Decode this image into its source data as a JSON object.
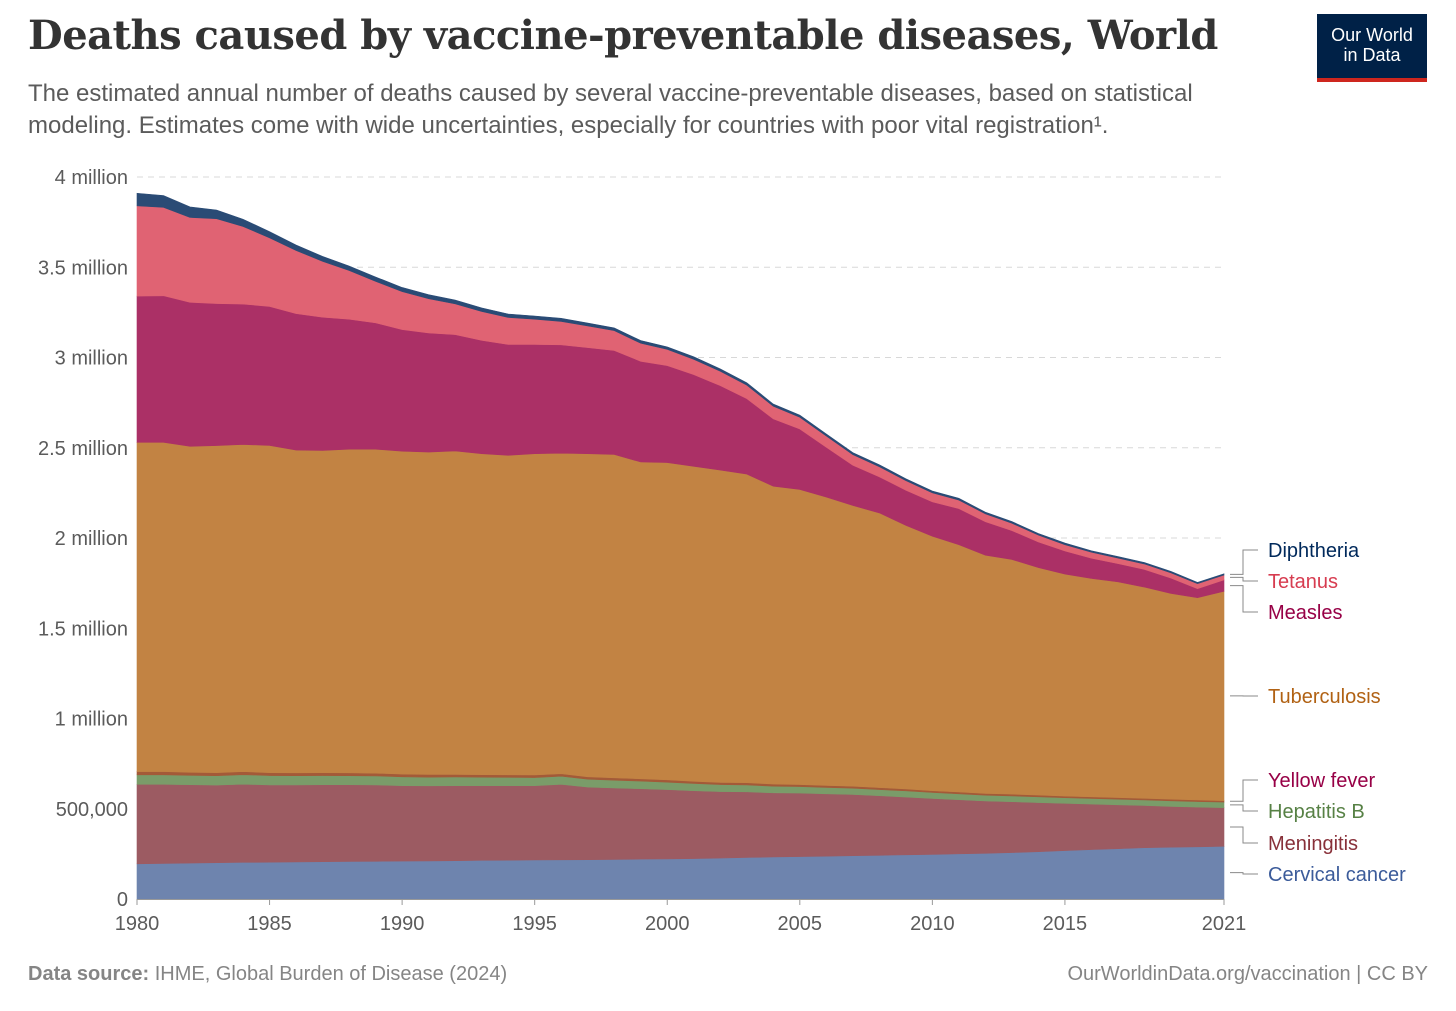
{
  "title": "Deaths caused by vaccine-preventable diseases, World",
  "subtitle": "The estimated annual number of deaths caused by several vaccine-preventable diseases, based on statistical modeling. Estimates come with wide uncertainties, especially for countries with poor vital registration¹.",
  "logo": {
    "line1": "Our World",
    "line2": "in Data",
    "bg": "#002147",
    "accent": "#ce261e"
  },
  "footer": {
    "source_label": "Data source:",
    "source_text": "IHME, Global Burden of Disease (2024)",
    "right_text": "OurWorldinData.org/vaccination | CC BY"
  },
  "chart_data": {
    "type": "area",
    "stacked": true,
    "x": [
      1980,
      1981,
      1982,
      1983,
      1984,
      1985,
      1986,
      1987,
      1988,
      1989,
      1990,
      1991,
      1992,
      1993,
      1994,
      1995,
      1996,
      1997,
      1998,
      1999,
      2000,
      2001,
      2002,
      2003,
      2004,
      2005,
      2006,
      2007,
      2008,
      2009,
      2010,
      2011,
      2012,
      2013,
      2014,
      2015,
      2016,
      2017,
      2018,
      2019,
      2020,
      2021
    ],
    "xlim": [
      1980,
      2021
    ],
    "ylim": [
      0,
      4000000
    ],
    "x_ticks": [
      {
        "value": 1980,
        "label": "1980"
      },
      {
        "value": 1985,
        "label": "1985"
      },
      {
        "value": 1990,
        "label": "1990"
      },
      {
        "value": 1995,
        "label": "1995"
      },
      {
        "value": 2000,
        "label": "2000"
      },
      {
        "value": 2005,
        "label": "2005"
      },
      {
        "value": 2010,
        "label": "2010"
      },
      {
        "value": 2015,
        "label": "2015"
      },
      {
        "value": 2021,
        "label": "2021"
      }
    ],
    "y_ticks": [
      {
        "value": 0,
        "label": "0"
      },
      {
        "value": 500000,
        "label": "500,000"
      },
      {
        "value": 1000000,
        "label": "1 million"
      },
      {
        "value": 1500000,
        "label": "1.5 million"
      },
      {
        "value": 2000000,
        "label": "2 million"
      },
      {
        "value": 2500000,
        "label": "2.5 million"
      },
      {
        "value": 3000000,
        "label": "3 million"
      },
      {
        "value": 3500000,
        "label": "3.5 million"
      },
      {
        "value": 4000000,
        "label": "4 million"
      }
    ],
    "grid": "horizontal-dashed",
    "legend": "right, labels at series ends",
    "series": [
      {
        "name": "Cervical cancer",
        "color": "#6e84ae",
        "label_color": "#3b5b9a",
        "values": [
          195000,
          197000,
          199000,
          201000,
          203000,
          204000,
          205000,
          207000,
          208000,
          209000,
          210000,
          211000,
          212000,
          214000,
          215000,
          216000,
          217000,
          218000,
          219000,
          221000,
          222000,
          224000,
          227000,
          230000,
          233000,
          235000,
          237000,
          240000,
          242000,
          245000,
          247000,
          250000,
          253000,
          257000,
          262000,
          268000,
          274000,
          279000,
          284000,
          287000,
          289000,
          292000
        ]
      },
      {
        "name": "Meningitis",
        "color": "#9c5b62",
        "label_color": "#883039",
        "values": [
          440000,
          438000,
          434000,
          430000,
          433000,
          428000,
          427000,
          426000,
          425000,
          423000,
          418000,
          416000,
          416000,
          414000,
          413000,
          412000,
          418000,
          402000,
          396000,
          390000,
          384000,
          376000,
          368000,
          364000,
          355000,
          352000,
          346000,
          339000,
          330000,
          320000,
          310000,
          300000,
          290000,
          282000,
          272000,
          262000,
          252000,
          243000,
          234000,
          226000,
          220000,
          214000
        ]
      },
      {
        "name": "Hepatitis B",
        "color": "#7a9c69",
        "label_color": "#578145",
        "values": [
          53000,
          53000,
          52000,
          52000,
          53000,
          52000,
          51000,
          51000,
          50000,
          50000,
          49000,
          48000,
          48000,
          47000,
          46000,
          45000,
          45000,
          44000,
          43000,
          42000,
          41000,
          40000,
          39000,
          38000,
          37000,
          36000,
          35000,
          35000,
          34000,
          34000,
          33000,
          33000,
          32000,
          32000,
          32000,
          31000,
          31000,
          31000,
          31000,
          31000,
          31000,
          31000
        ]
      },
      {
        "name": "Yellow fever",
        "color": "#a35a38",
        "label_color": "#970046",
        "label_color_note": "",
        "values": [
          18000,
          18000,
          17000,
          17000,
          17000,
          16000,
          16000,
          16000,
          16000,
          15000,
          15000,
          15000,
          14000,
          14000,
          14000,
          14000,
          14000,
          13000,
          13000,
          13000,
          13000,
          12000,
          12000,
          12000,
          12000,
          11000,
          11000,
          11000,
          11000,
          11000,
          10000,
          10000,
          10000,
          10000,
          10000,
          9000,
          9000,
          9000,
          9000,
          9000,
          9000,
          8000
        ]
      },
      {
        "name": "Tuberculosis",
        "color": "#c28343",
        "label_color": "#b16214",
        "values": [
          1824000,
          1824000,
          1806000,
          1812000,
          1812000,
          1813000,
          1788000,
          1785000,
          1793000,
          1795000,
          1789000,
          1786000,
          1792000,
          1778000,
          1770000,
          1780000,
          1776000,
          1790000,
          1792000,
          1755000,
          1758000,
          1745000,
          1730000,
          1710000,
          1650000,
          1635000,
          1598000,
          1555000,
          1522000,
          1460000,
          1410000,
          1370000,
          1320000,
          1300000,
          1260000,
          1230000,
          1210000,
          1195000,
          1170000,
          1140000,
          1120000,
          1160000
        ]
      },
      {
        "name": "Measles",
        "color": "#ab3066",
        "label_color": "#970046",
        "values": [
          810000,
          812000,
          798000,
          787000,
          778000,
          770000,
          756000,
          738000,
          720000,
          700000,
          674000,
          660000,
          645000,
          628000,
          614000,
          605000,
          600000,
          588000,
          576000,
          558000,
          537000,
          508000,
          468000,
          418000,
          373000,
          335000,
          276000,
          223000,
          200000,
          195000,
          190000,
          200000,
          185000,
          160000,
          142000,
          128000,
          112000,
          101000,
          98000,
          85000,
          50000,
          63000
        ]
      },
      {
        "name": "Tetanus",
        "color": "#e06373",
        "label_color": "#d73c50",
        "values": [
          500000,
          490000,
          470000,
          470000,
          430000,
          380000,
          350000,
          310000,
          270000,
          230000,
          210000,
          190000,
          170000,
          160000,
          150000,
          140000,
          130000,
          120000,
          110000,
          100000,
          90000,
          85000,
          80000,
          75000,
          70000,
          65000,
          62000,
          59000,
          56000,
          53000,
          50000,
          47000,
          44000,
          41000,
          38000,
          35000,
          33000,
          31000,
          30000,
          29000,
          28000,
          27000
        ]
      },
      {
        "name": "Diphtheria",
        "color": "#2a4b75",
        "label_color": "#00295b",
        "values": [
          70000,
          65000,
          58000,
          48000,
          40000,
          34000,
          30000,
          27000,
          25000,
          24000,
          23000,
          22000,
          21000,
          20000,
          19000,
          18000,
          17000,
          16000,
          15000,
          15000,
          14000,
          14000,
          13000,
          13000,
          12000,
          12000,
          11000,
          11000,
          11000,
          10000,
          10000,
          10000,
          9000,
          9000,
          9000,
          9000,
          8000,
          8000,
          8000,
          8000,
          7000,
          7000
        ]
      }
    ]
  }
}
